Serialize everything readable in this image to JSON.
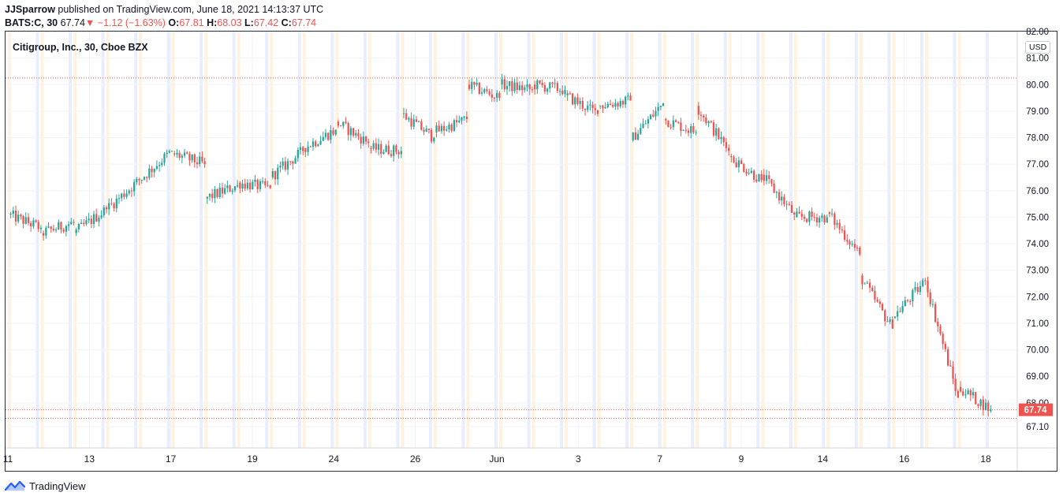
{
  "header": {
    "author": "JJSparrow",
    "published_text": " published on TradingView.com, June 18, 2021 14:13:37 UTC",
    "symbol": "BATS:C, 30",
    "last": "67.74",
    "change": "−1.12 (−1.63%)",
    "o_label": "O:",
    "o_value": "67.81",
    "h_label": "H:",
    "h_value": "68.03",
    "l_label": "L:",
    "l_value": "67.42",
    "c_label": "C:",
    "c_value": "67.74",
    "change_arrow": "▼"
  },
  "legend": {
    "title": "Citigroup, Inc., 30, Cboe BZX"
  },
  "axis": {
    "currency": "USD"
  },
  "footer": {
    "brand": "TradingView"
  },
  "colors": {
    "up": "#26a69a",
    "down": "#ef5350",
    "grid": "#f0f3fa",
    "axis_text": "#131722",
    "premarket": "#fff3e0",
    "afterhours": "#e8eefc",
    "last_price_bg": "#ef5350"
  },
  "chart_data": {
    "type": "candlestick",
    "title": "Citigroup, Inc., 30, Cboe BZX",
    "ylim": [
      66.3,
      82.0
    ],
    "y_ticks": [
      "82.00",
      "81.00",
      "80.00",
      "79.00",
      "78.00",
      "77.00",
      "76.00",
      "75.00",
      "74.00",
      "73.00",
      "72.00",
      "71.00",
      "70.00",
      "69.00",
      "68.00",
      "67.10"
    ],
    "x_ticks": [
      "11",
      "13",
      "17",
      "19",
      "24",
      "26",
      "Jun",
      "3",
      "7",
      "9",
      "14",
      "16",
      "18"
    ],
    "last_price": "67.74",
    "prev_close_line": 80.25,
    "session_anchors": [
      {
        "session": "11",
        "open": 75.1,
        "close": 74.6
      },
      {
        "session": "12",
        "open": 74.4,
        "close": 74.8
      },
      {
        "session": "13",
        "open": 74.4,
        "close": 75.3
      },
      {
        "session": "14",
        "open": 75.3,
        "close": 76.4
      },
      {
        "session": "17",
        "open": 76.4,
        "close": 77.5
      },
      {
        "session": "18",
        "open": 77.4,
        "close": 77.0
      },
      {
        "session": "19",
        "open": 75.7,
        "close": 76.2
      },
      {
        "session": "20",
        "open": 76.3,
        "close": 76.1
      },
      {
        "session": "21",
        "open": 76.5,
        "close": 77.5
      },
      {
        "session": "24",
        "open": 77.6,
        "close": 78.3
      },
      {
        "session": "25",
        "open": 78.6,
        "close": 77.8
      },
      {
        "session": "26",
        "open": 77.6,
        "close": 77.5
      },
      {
        "session": "27",
        "open": 78.9,
        "close": 78.0
      },
      {
        "session": "28",
        "open": 78.2,
        "close": 78.7
      },
      {
        "session": "Jun 1",
        "open": 80.0,
        "close": 79.5
      },
      {
        "session": "2",
        "open": 80.0,
        "close": 79.8
      },
      {
        "session": "3",
        "open": 80.0,
        "close": 79.8
      },
      {
        "session": "4",
        "open": 79.6,
        "close": 78.9
      },
      {
        "session": "7",
        "open": 79.2,
        "close": 79.4
      },
      {
        "session": "8",
        "open": 77.9,
        "close": 79.3
      },
      {
        "session": "9",
        "open": 78.7,
        "close": 78.2
      },
      {
        "session": "10",
        "open": 79.2,
        "close": 77.5
      },
      {
        "session": "11",
        "open": 77.3,
        "close": 76.4
      },
      {
        "session": "14",
        "open": 76.6,
        "close": 75.1
      },
      {
        "session": "15",
        "open": 75.0,
        "close": 75.0
      },
      {
        "session": "16",
        "open": 75.2,
        "close": 73.6
      },
      {
        "session": "17",
        "open": 72.8,
        "close": 70.8
      },
      {
        "session": "17b",
        "open": 71.2,
        "close": 72.6
      },
      {
        "session": "18",
        "open": 72.6,
        "close": 68.2
      },
      {
        "session": "18b",
        "open": 68.6,
        "close": 67.74
      }
    ]
  }
}
